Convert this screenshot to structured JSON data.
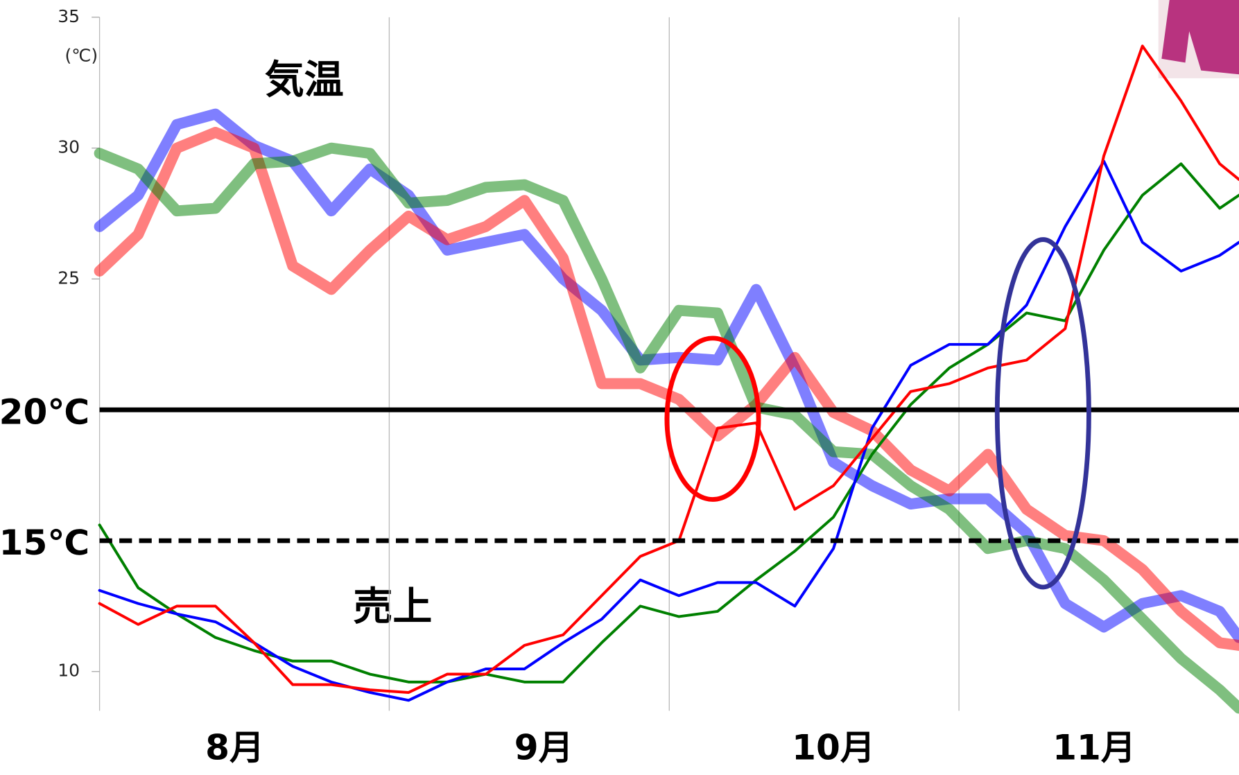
{
  "chart_data": {
    "type": "line",
    "unit_label": "(℃)",
    "annotations": [
      "気温",
      "売上"
    ],
    "x": [
      0,
      4,
      8,
      12,
      16,
      20,
      24,
      28,
      32,
      36,
      40,
      44,
      48,
      52,
      56,
      60,
      64,
      68,
      72,
      76,
      80,
      84,
      88,
      92,
      96,
      100,
      104,
      108,
      112,
      116,
      118
    ],
    "xlim": [
      0,
      118
    ],
    "xgrid": [
      0,
      30,
      59,
      89
    ],
    "xticks": [
      {
        "value": 14,
        "label": "8月"
      },
      {
        "value": 46,
        "label": "9月"
      },
      {
        "value": 76,
        "label": "10月"
      },
      {
        "value": 103,
        "label": "11月"
      }
    ],
    "ylim": [
      8.5,
      35
    ],
    "yticks": [
      10,
      25,
      30,
      35
    ],
    "reference_lines": [
      {
        "value": 20,
        "label": "20℃",
        "style": "solid"
      },
      {
        "value": 15,
        "label": "15℃",
        "style": "dashed"
      }
    ],
    "series": [
      {
        "color": "#0000ff",
        "line_width": 14,
        "opacity": 0.5,
        "values": [
          27.0,
          28.2,
          30.9,
          31.3,
          30.1,
          29.5,
          27.6,
          29.2,
          28.2,
          26.1,
          26.4,
          26.7,
          25.0,
          23.8,
          21.9,
          22.0,
          21.9,
          24.6,
          21.6,
          18.0,
          17.1,
          16.4,
          16.6,
          16.6,
          15.3,
          12.6,
          11.7,
          12.6,
          12.9,
          12.3,
          11.3
        ]
      },
      {
        "color": "#ff0000",
        "line_width": 14,
        "opacity": 0.5,
        "values": [
          25.3,
          26.7,
          30.0,
          30.6,
          30.0,
          25.5,
          24.6,
          26.1,
          27.4,
          26.5,
          27.0,
          28.0,
          25.8,
          21.0,
          21.0,
          20.4,
          19.0,
          20.2,
          22.0,
          19.9,
          19.2,
          17.7,
          16.9,
          18.3,
          16.2,
          15.2,
          15.0,
          13.9,
          12.3,
          11.1,
          11.0
        ]
      },
      {
        "color": "#008000",
        "line_width": 14,
        "opacity": 0.5,
        "values": [
          29.8,
          29.2,
          27.6,
          27.7,
          29.4,
          29.5,
          30.0,
          29.8,
          27.9,
          28.0,
          28.5,
          28.6,
          28.0,
          25.0,
          21.6,
          23.8,
          23.7,
          20.1,
          19.8,
          18.4,
          18.3,
          17.1,
          16.2,
          14.7,
          15.0,
          14.7,
          13.5,
          12.0,
          10.5,
          9.3,
          8.6
        ]
      },
      {
        "color": "#008000",
        "line_width": 3.5,
        "opacity": 1,
        "values": [
          15.6,
          13.2,
          12.2,
          11.3,
          10.8,
          10.4,
          10.4,
          9.9,
          9.6,
          9.6,
          9.9,
          9.6,
          9.6,
          11.1,
          12.5,
          12.1,
          12.3,
          13.5,
          14.6,
          15.9,
          18.3,
          20.2,
          21.6,
          22.5,
          23.7,
          23.4,
          26.1,
          28.2,
          29.4,
          27.7,
          28.2
        ]
      },
      {
        "color": "#0000ff",
        "line_width": 3.5,
        "opacity": 1,
        "values": [
          13.1,
          12.6,
          12.2,
          11.9,
          11.1,
          10.2,
          9.6,
          9.2,
          8.9,
          9.6,
          10.1,
          10.1,
          11.1,
          12.0,
          13.5,
          12.9,
          13.4,
          13.4,
          12.5,
          14.7,
          19.3,
          21.7,
          22.5,
          22.5,
          24.0,
          27.0,
          29.5,
          26.4,
          25.3,
          25.9,
          26.4
        ]
      },
      {
        "color": "#ff0000",
        "line_width": 3.5,
        "opacity": 1,
        "values": [
          12.6,
          11.8,
          12.5,
          12.5,
          11.1,
          9.5,
          9.5,
          9.3,
          9.2,
          9.9,
          9.9,
          11.0,
          11.4,
          12.9,
          14.4,
          15.0,
          19.3,
          19.5,
          16.2,
          17.1,
          18.9,
          20.7,
          21.0,
          21.6,
          21.9,
          23.1,
          29.7,
          33.9,
          31.8,
          29.4,
          28.8
        ]
      }
    ]
  }
}
